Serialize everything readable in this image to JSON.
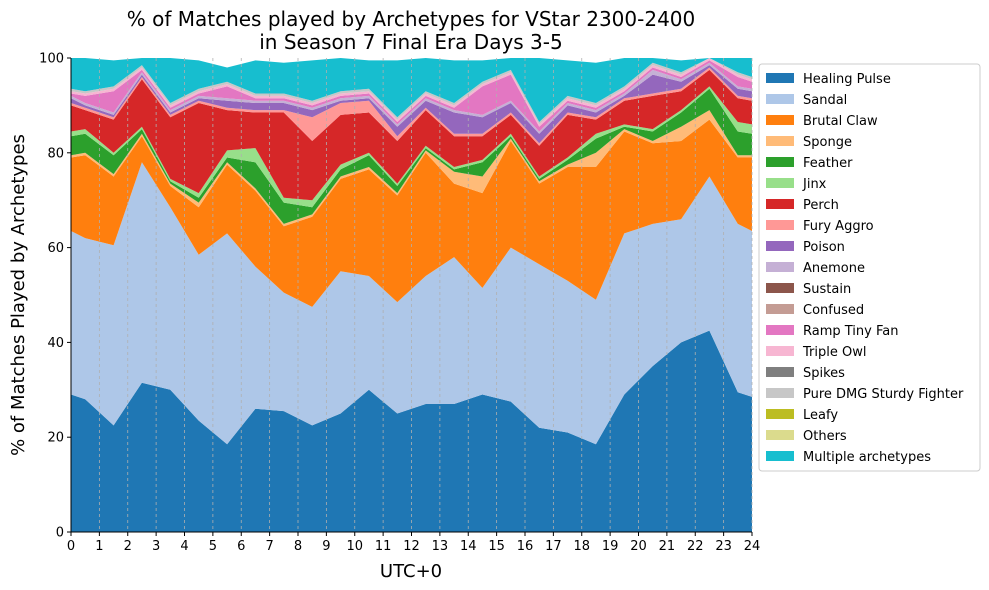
{
  "chart_data": {
    "type": "area",
    "title": "% of Matches played by Archetypes for VStar 2300-2400\nin Season 7 Final Era Days 3-5",
    "xlabel": "UTC+0",
    "ylabel": "% of Matches Played by Archetypes",
    "xlim": [
      0,
      24
    ],
    "ylim": [
      0,
      100
    ],
    "x_ticks": [
      "0",
      "1",
      "2",
      "3",
      "4",
      "5",
      "6",
      "7",
      "8",
      "9",
      "10",
      "11",
      "12",
      "13",
      "14",
      "15",
      "16",
      "17",
      "18",
      "19",
      "20",
      "21",
      "22",
      "23",
      "24"
    ],
    "y_ticks": [
      "0",
      "20",
      "40",
      "60",
      "80",
      "100"
    ],
    "grid": "vertical dashed",
    "legend_position": "outside right",
    "x": [
      0,
      0.5,
      1.5,
      2.5,
      3.5,
      4.5,
      5.5,
      6.5,
      7.5,
      8.5,
      9.5,
      10.5,
      11.5,
      12.5,
      13.5,
      14.5,
      15.5,
      16.5,
      17.5,
      18.5,
      19.5,
      20.5,
      21.5,
      22.5,
      23.5,
      24
    ],
    "series": [
      {
        "name": "Healing Pulse",
        "color": "#1f77b4",
        "values": [
          29,
          28,
          22.5,
          31.5,
          30,
          23.5,
          18.5,
          26,
          25.5,
          22.5,
          25,
          30,
          25,
          27,
          27,
          29,
          27.5,
          22,
          21,
          18.5,
          29,
          35,
          40,
          42.5,
          29.5,
          28.5
        ]
      },
      {
        "name": "Sandal",
        "color": "#aec7e8",
        "values": [
          34.5,
          34,
          38,
          46.5,
          38.5,
          35,
          44.5,
          30,
          25,
          25,
          30,
          24,
          23.5,
          27,
          31,
          22.5,
          32.5,
          34.5,
          32,
          30.5,
          34,
          30,
          26,
          32.5,
          35.5,
          35
        ]
      },
      {
        "name": "Brutal Claw",
        "color": "#ff7f0e",
        "values": [
          15.5,
          17.5,
          14.5,
          5.5,
          4.5,
          10,
          14.5,
          16,
          14,
          19,
          19.5,
          22.5,
          22.5,
          26,
          15.5,
          20,
          22.5,
          17,
          24,
          28,
          21.5,
          17,
          16.5,
          12,
          14,
          15.5
        ]
      },
      {
        "name": "Sponge",
        "color": "#ffbb78",
        "values": [
          0.5,
          0.5,
          0.5,
          0.5,
          0.5,
          1,
          0.5,
          0.5,
          0.5,
          0.5,
          0.5,
          0.5,
          0.5,
          0.5,
          2.5,
          3.5,
          0.5,
          0.5,
          0.5,
          3,
          0.5,
          0.5,
          3,
          2,
          0.5,
          0.5
        ]
      },
      {
        "name": "Feather",
        "color": "#2ca02c",
        "values": [
          4,
          4,
          4,
          1,
          0.5,
          1,
          1,
          5.5,
          4.5,
          1.5,
          1.5,
          2.5,
          1.5,
          0.5,
          0.5,
          3,
          0.5,
          0.5,
          1,
          3,
          0.5,
          2,
          3,
          4.5,
          5,
          4.5
        ]
      },
      {
        "name": "Jinx",
        "color": "#98df8a",
        "values": [
          1,
          1,
          0.5,
          0.5,
          0.5,
          1,
          1.5,
          3,
          1,
          1.5,
          1,
          0.5,
          0.5,
          0.5,
          0.5,
          0.5,
          0.5,
          0.5,
          0.5,
          1,
          0.5,
          0.5,
          0.5,
          0.5,
          2,
          2
        ]
      },
      {
        "name": "Perch",
        "color": "#d62728",
        "values": [
          5.5,
          4,
          7,
          10,
          13,
          19,
          8.5,
          7.5,
          18,
          12.5,
          10.5,
          8.5,
          9,
          7.5,
          6.5,
          5,
          4,
          6.5,
          9,
          3,
          5,
          7,
          4,
          3.5,
          5,
          5
        ]
      },
      {
        "name": "Fury Aggro",
        "color": "#ff9896",
        "values": [
          0.5,
          0.5,
          0.5,
          0.5,
          0.5,
          0.5,
          0.5,
          0.5,
          0.5,
          5,
          2.5,
          2.5,
          1,
          0.5,
          0.5,
          0.5,
          0.5,
          0.5,
          0.5,
          0.5,
          0.5,
          0.5,
          0.5,
          0.5,
          0.5,
          0.5
        ]
      },
      {
        "name": "Poison",
        "color": "#9467bd",
        "values": [
          1,
          0.5,
          0.5,
          0.5,
          0.5,
          0.5,
          1.5,
          1.5,
          1.5,
          1.5,
          0.5,
          0.5,
          2,
          1.5,
          4.5,
          3.5,
          2,
          2,
          1.5,
          1,
          0.5,
          4,
          1.5,
          0.5,
          1.5,
          1.5
        ]
      },
      {
        "name": "Anemone",
        "color": "#c5b0d5",
        "values": [
          0.5,
          0.5,
          0.5,
          0.5,
          0.5,
          0.5,
          0.5,
          0.5,
          0.5,
          0.5,
          0.5,
          0.5,
          0.5,
          0.5,
          0.5,
          0.5,
          0.5,
          0.5,
          0.5,
          0.5,
          0.5,
          1,
          0.5,
          0.5,
          0.5,
          0.5
        ]
      },
      {
        "name": "Sustain",
        "color": "#8c564b",
        "values": [
          0,
          0,
          0,
          0,
          0,
          0,
          0,
          0,
          0,
          0,
          0,
          0,
          0,
          0,
          0,
          0,
          0,
          0,
          0,
          0,
          0,
          0,
          0,
          0,
          0,
          0
        ]
      },
      {
        "name": "Confused",
        "color": "#c49c94",
        "values": [
          0,
          0,
          0,
          0,
          0,
          0,
          0,
          0,
          0,
          0,
          0,
          0,
          0,
          0,
          0,
          0,
          0,
          0,
          0,
          0,
          0,
          0,
          0,
          0,
          0,
          0
        ]
      },
      {
        "name": "Ramp Tiny Fan",
        "color": "#e377c2",
        "values": [
          0.5,
          1.5,
          4.5,
          0.5,
          0.5,
          0.5,
          2.5,
          0.5,
          0.5,
          0.5,
          0.5,
          0.5,
          0.5,
          0.5,
          0.5,
          6,
          5.5,
          1,
          0.5,
          0.5,
          0.5,
          0.5,
          0.5,
          0.5,
          2,
          1.5
        ]
      },
      {
        "name": "Triple Owl",
        "color": "#f7b6d2",
        "values": [
          0.5,
          0.5,
          0.5,
          0.5,
          0.5,
          0.5,
          0.5,
          0.5,
          0.5,
          0.5,
          0.5,
          0.5,
          0.5,
          0.5,
          0.5,
          0.5,
          0.5,
          0.5,
          0.5,
          0.5,
          0.5,
          0.5,
          0.5,
          0.5,
          0.5,
          0.5
        ]
      },
      {
        "name": "Spikes",
        "color": "#7f7f7f",
        "values": [
          0,
          0,
          0,
          0,
          0,
          0,
          0,
          0,
          0,
          0,
          0,
          0,
          0,
          0,
          0,
          0,
          0,
          0,
          0,
          0,
          0,
          0,
          0,
          0,
          0,
          0
        ]
      },
      {
        "name": "Pure DMG Sturdy Fighter",
        "color": "#c7c7c7",
        "values": [
          0.5,
          0.5,
          0.5,
          0.5,
          0.5,
          0.5,
          0.5,
          0.5,
          0.5,
          0.5,
          0.5,
          0.5,
          0.5,
          0.5,
          0.5,
          0.5,
          0.5,
          0.5,
          0.5,
          0.5,
          0.5,
          0.5,
          0.5,
          0.5,
          0.5,
          0.5
        ]
      },
      {
        "name": "Leafy",
        "color": "#bcbd22",
        "values": [
          0,
          0,
          0,
          0,
          0,
          0,
          0,
          0,
          0,
          0,
          0,
          0,
          0,
          0,
          0,
          0,
          0,
          0,
          0,
          0,
          0,
          0,
          0,
          0,
          0,
          0
        ]
      },
      {
        "name": "Others",
        "color": "#dbdb8d",
        "values": [
          0,
          0,
          0,
          0,
          0,
          0,
          0,
          0,
          0,
          0,
          0,
          0,
          0,
          0,
          0,
          0,
          0,
          0,
          0,
          0,
          0,
          0,
          0,
          0,
          0,
          0
        ]
      },
      {
        "name": "Multiple archetypes",
        "color": "#17becf",
        "values": [
          6.5,
          7,
          5.5,
          1.5,
          10,
          6,
          3,
          7,
          6.5,
          8.5,
          7,
          6,
          12,
          7.5,
          9,
          4.5,
          2.5,
          13.5,
          7.5,
          8.5,
          6.5,
          1.5,
          2.5,
          1.5,
          3,
          4
        ]
      }
    ]
  }
}
